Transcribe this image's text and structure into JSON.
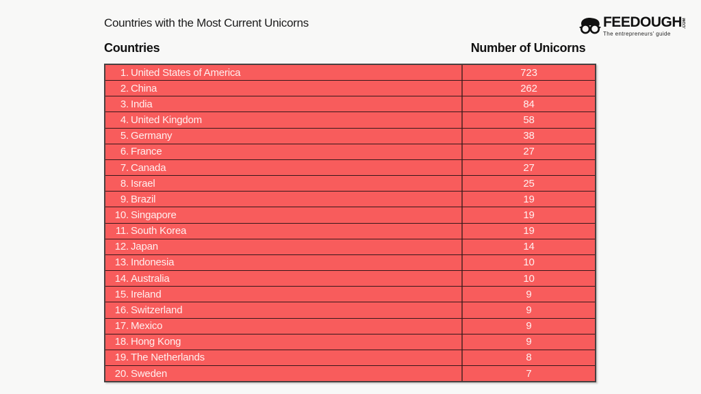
{
  "page": {
    "title": "Countries with the Most Current Unicorns"
  },
  "logo": {
    "brand": "FEEDOUGH",
    "tld": ".COM",
    "tagline": "The entrepreneurs' guide",
    "icon": "nerd-glasses-icon"
  },
  "table": {
    "col1_header": "Countries",
    "col2_header": "Number of Unicorns",
    "rows": [
      {
        "rank": "1.",
        "country": "United States of America",
        "value": "723"
      },
      {
        "rank": "2.",
        "country": "China",
        "value": "262"
      },
      {
        "rank": "3.",
        "country": "India",
        "value": "84"
      },
      {
        "rank": "4.",
        "country": "United Kingdom",
        "value": "58"
      },
      {
        "rank": "5.",
        "country": "Germany",
        "value": "38"
      },
      {
        "rank": "6.",
        "country": "France",
        "value": "27"
      },
      {
        "rank": "7.",
        "country": "Canada",
        "value": "27"
      },
      {
        "rank": "8.",
        "country": "Israel",
        "value": "25"
      },
      {
        "rank": "9.",
        "country": "Brazil",
        "value": "19"
      },
      {
        "rank": "10.",
        "country": "Singapore",
        "value": "19"
      },
      {
        "rank": "11.",
        "country": "South Korea",
        "value": "19"
      },
      {
        "rank": "12.",
        "country": "Japan",
        "value": "14"
      },
      {
        "rank": "13.",
        "country": "Indonesia",
        "value": "10"
      },
      {
        "rank": "14.",
        "country": "Australia",
        "value": "10"
      },
      {
        "rank": "15.",
        "country": "Ireland",
        "value": "9"
      },
      {
        "rank": "16.",
        "country": "Switzerland",
        "value": "9"
      },
      {
        "rank": "17.",
        "country": "Mexico",
        "value": "9"
      },
      {
        "rank": "18.",
        "country": "Hong Kong",
        "value": "9"
      },
      {
        "rank": "19.",
        "country": "The Netherlands",
        "value": "8"
      },
      {
        "rank": "20.",
        "country": "Sweden",
        "value": "7"
      }
    ]
  },
  "colors": {
    "row_fill": "#f85c5c",
    "row_border": "#35171a",
    "column_divider": "#73302e",
    "outer_border": "#474040",
    "background": "#f8f8f7",
    "row_text": "#ffefef",
    "heading_text": "#111111"
  },
  "chart_data": {
    "type": "table",
    "title": "Countries with the Most Current Unicorns",
    "columns": [
      "Countries",
      "Number of Unicorns"
    ],
    "categories": [
      "United States of America",
      "China",
      "India",
      "United Kingdom",
      "Germany",
      "France",
      "Canada",
      "Israel",
      "Brazil",
      "Singapore",
      "South Korea",
      "Japan",
      "Indonesia",
      "Australia",
      "Ireland",
      "Switzerland",
      "Mexico",
      "Hong Kong",
      "The Netherlands",
      "Sweden"
    ],
    "values": [
      723,
      262,
      84,
      58,
      38,
      27,
      27,
      25,
      19,
      19,
      19,
      14,
      10,
      10,
      9,
      9,
      9,
      9,
      8,
      7
    ]
  }
}
